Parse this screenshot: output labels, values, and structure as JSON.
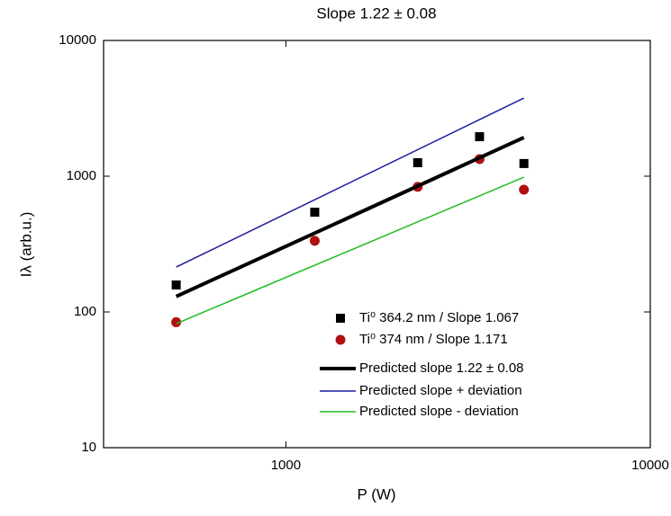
{
  "chart_data": {
    "type": "scatter",
    "title": "Slope 1.22 ± 0.08",
    "x_label": "P (W)",
    "y_label": "Iλ (arb.u.)",
    "x_log": true,
    "y_log": true,
    "xlim": [
      316,
      10000
    ],
    "ylim": [
      10,
      10000
    ],
    "xticks": [
      1000,
      10000
    ],
    "yticks": [
      10,
      100,
      1000,
      10000
    ],
    "series": [
      {
        "name": "Ti⁰ 364.2 nm / Slope 1.067",
        "color": "#000000",
        "marker": "square",
        "x": [
          500,
          1200,
          2300,
          3400,
          4500
        ],
        "values": [
          158,
          543,
          1257,
          1954,
          1240
        ]
      },
      {
        "name": "Ti⁰ 374 nm / Slope 1.171",
        "color": "#b01010",
        "marker": "circle",
        "x": [
          500,
          1200,
          2300,
          3400,
          4500
        ],
        "values": [
          84,
          334,
          834,
          1336,
          796
        ]
      },
      {
        "name": "Predicted slope 1.22 ± 0.08",
        "color": "#000000",
        "marker": "line",
        "width": 4,
        "x": [
          500,
          4500
        ],
        "values": [
          130,
          1928
        ]
      },
      {
        "name": "Predicted slope + deviation",
        "color": "#1a1aa0",
        "marker": "line",
        "width": 1.5,
        "x": [
          500,
          4500
        ],
        "values": [
          214,
          3767
        ]
      },
      {
        "name": "Predicted slope - deviation",
        "color": "#22bb22",
        "marker": "line",
        "width": 1.5,
        "x": [
          500,
          4500
        ],
        "values": [
          82,
          984
        ]
      }
    ]
  }
}
